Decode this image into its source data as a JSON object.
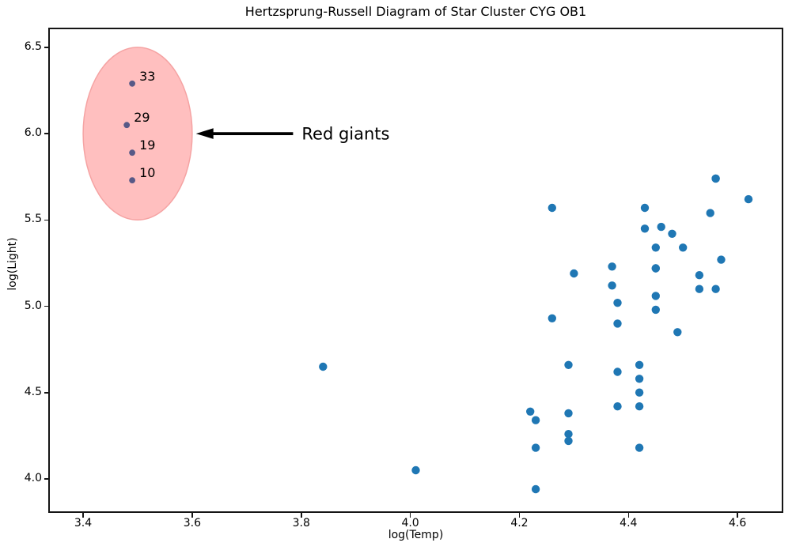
{
  "chart_data": {
    "type": "scatter",
    "title": "Hertzsprung-Russell Diagram of Star Cluster CYG OB1",
    "xlabel": "log(Temp)",
    "ylabel": "log(Light)",
    "xlim": [
      3.339,
      4.681
    ],
    "ylim": [
      3.812,
      6.605
    ],
    "x_ticks": [
      3.4,
      3.6,
      3.8,
      4.0,
      4.2,
      4.4,
      4.6
    ],
    "y_ticks": [
      4.0,
      4.5,
      5.0,
      5.5,
      6.0,
      6.5
    ],
    "grid": false,
    "main_sequence": {
      "color": "#1f77b4",
      "points": [
        [
          4.37,
          5.23
        ],
        [
          4.56,
          5.74
        ],
        [
          4.26,
          4.93
        ],
        [
          4.56,
          5.74
        ],
        [
          4.3,
          5.19
        ],
        [
          4.46,
          5.46
        ],
        [
          3.84,
          4.65
        ],
        [
          4.57,
          5.27
        ],
        [
          4.26,
          5.57
        ],
        [
          4.37,
          5.12
        ],
        [
          4.43,
          5.45
        ],
        [
          4.48,
          5.42
        ],
        [
          4.01,
          4.05
        ],
        [
          4.29,
          4.26
        ],
        [
          4.42,
          4.58
        ],
        [
          4.23,
          3.94
        ],
        [
          4.42,
          4.18
        ],
        [
          4.23,
          4.18
        ],
        [
          4.29,
          4.38
        ],
        [
          4.29,
          4.22
        ],
        [
          4.42,
          4.42
        ],
        [
          4.49,
          4.85
        ],
        [
          4.38,
          5.02
        ],
        [
          4.42,
          4.66
        ],
        [
          4.29,
          4.66
        ],
        [
          4.38,
          4.9
        ],
        [
          4.22,
          4.39
        ],
        [
          4.38,
          4.42
        ],
        [
          4.56,
          5.1
        ],
        [
          4.45,
          5.22
        ],
        [
          4.23,
          4.34
        ],
        [
          4.62,
          5.62
        ],
        [
          4.53,
          5.1
        ],
        [
          4.45,
          5.22
        ],
        [
          4.53,
          5.18
        ],
        [
          4.43,
          5.57
        ],
        [
          4.38,
          4.62
        ],
        [
          4.45,
          5.06
        ],
        [
          4.5,
          5.34
        ],
        [
          4.45,
          5.34
        ],
        [
          4.55,
          5.54
        ],
        [
          4.45,
          4.98
        ],
        [
          4.42,
          4.5
        ]
      ]
    },
    "red_giants": {
      "observed_point_color": "#575b8a",
      "base_point_color": "#1f77b4",
      "points": [
        {
          "label": "33",
          "x": 3.49,
          "y": 6.29
        },
        {
          "label": "29",
          "x": 3.48,
          "y": 6.05
        },
        {
          "label": "19",
          "x": 3.49,
          "y": 5.89
        },
        {
          "label": "10",
          "x": 3.49,
          "y": 5.73
        }
      ],
      "ellipse": {
        "center_x": 3.5,
        "center_y": 6.0,
        "width": 0.2,
        "height": 1.0,
        "fill": "rgba(255,0,0,0.25)",
        "stroke": "#f5a3a3"
      }
    },
    "annotation": {
      "text": "Red giants",
      "color": "#000000",
      "arrow_color": "#000000",
      "arrow_tip_x": 3.607,
      "arrow_tail_x": 3.785,
      "text_x": 3.801,
      "y": 6.0
    }
  }
}
